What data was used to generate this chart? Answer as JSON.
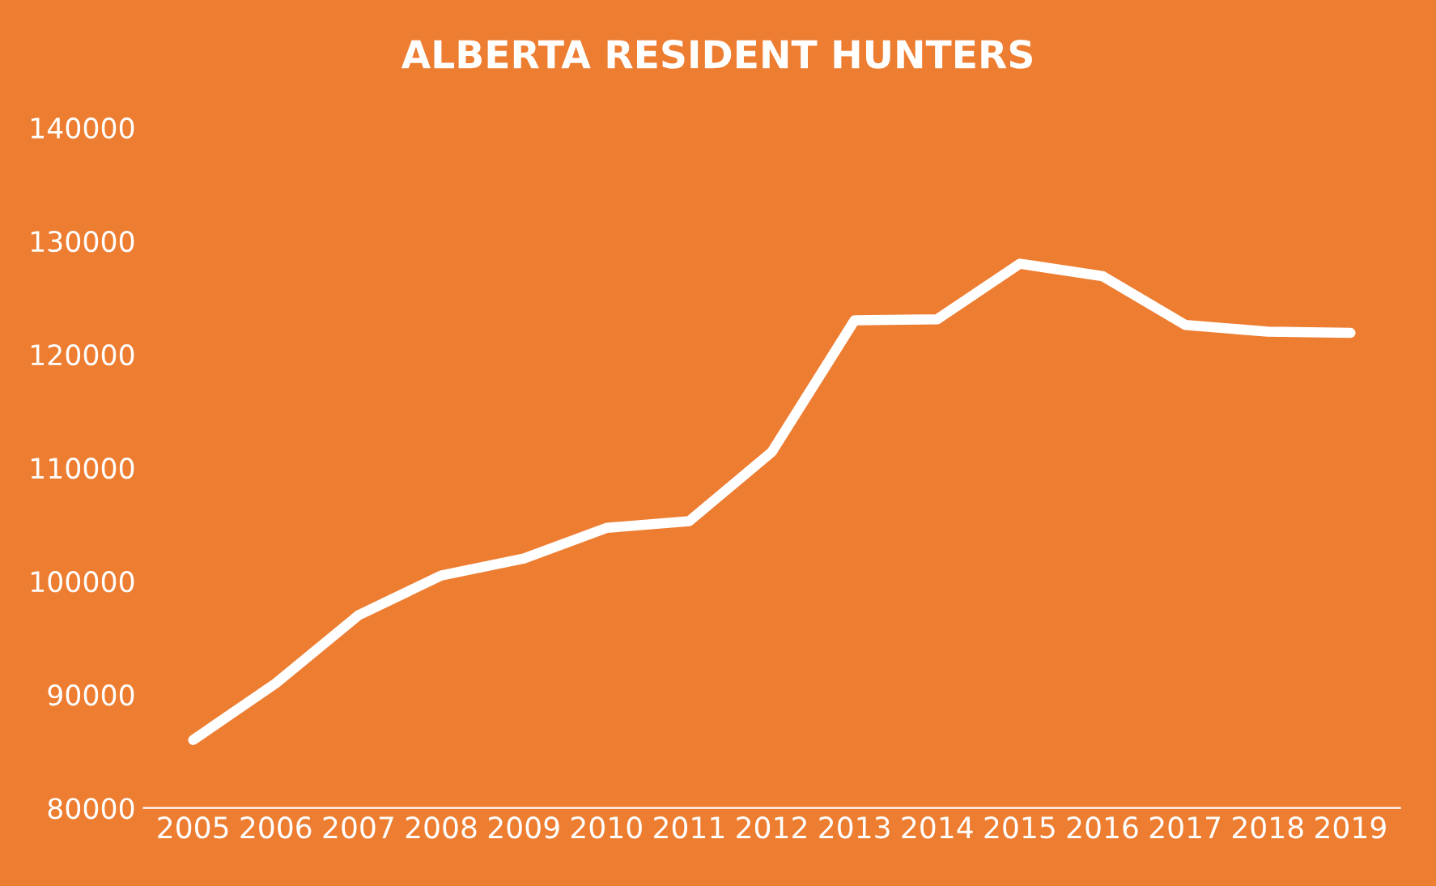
{
  "chart_data": {
    "type": "line",
    "title": "ALBERTA RESIDENT HUNTERS",
    "categories": [
      "2005",
      "2006",
      "2007",
      "2008",
      "2009",
      "2010",
      "2011",
      "2012",
      "2013",
      "2014",
      "2015",
      "2016",
      "2017",
      "2018",
      "2019"
    ],
    "series": [
      {
        "color": "#ffffff",
        "values": [
          86000,
          91000,
          97000,
          100500,
          102000,
          104700,
          105300,
          111400,
          123000,
          123100,
          128000,
          126900,
          122600,
          122000,
          121900
        ]
      }
    ],
    "ylim": [
      80000,
      140000
    ],
    "yticks": [
      80000,
      90000,
      100000,
      110000,
      120000,
      130000,
      140000
    ],
    "grid": false,
    "legend": false,
    "marker": "none",
    "line_style": "solid"
  }
}
